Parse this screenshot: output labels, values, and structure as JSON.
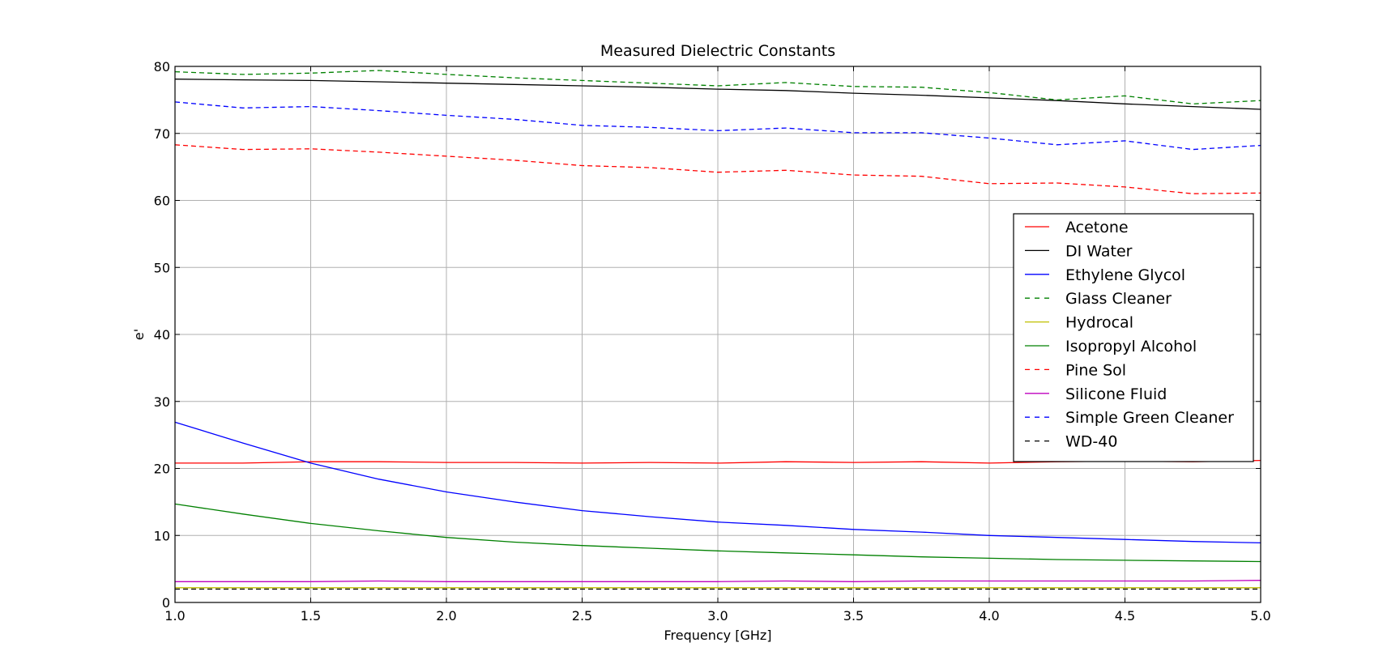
{
  "chart_data": {
    "type": "line",
    "title": "Measured Dielectric Constants",
    "xlabel": "Frequency [GHz]",
    "ylabel": "e'",
    "xlim": [
      1.0,
      5.0
    ],
    "ylim": [
      0,
      80
    ],
    "xticks": [
      "1.0",
      "1.5",
      "2.0",
      "2.5",
      "3.0",
      "3.5",
      "4.0",
      "4.5",
      "5.0"
    ],
    "yticks": [
      "0",
      "10",
      "20",
      "30",
      "40",
      "50",
      "60",
      "70",
      "80"
    ],
    "grid": true,
    "legend_position": "center-right",
    "x": [
      1.0,
      1.25,
      1.5,
      1.75,
      2.0,
      2.25,
      2.5,
      2.75,
      3.0,
      3.25,
      3.5,
      3.75,
      4.0,
      4.25,
      4.5,
      4.75,
      5.0
    ],
    "series": [
      {
        "name": "Acetone",
        "color": "#ff0000",
        "dash": "solid",
        "values": [
          20.8,
          20.8,
          21.0,
          21.0,
          20.9,
          20.9,
          20.8,
          20.9,
          20.8,
          21.0,
          20.9,
          21.0,
          20.8,
          21.0,
          21.1,
          21.0,
          21.2
        ]
      },
      {
        "name": "DI Water",
        "color": "#000000",
        "dash": "solid",
        "values": [
          78.1,
          78.0,
          77.9,
          77.7,
          77.5,
          77.3,
          77.1,
          76.9,
          76.6,
          76.4,
          76.0,
          75.7,
          75.3,
          74.9,
          74.4,
          74.0,
          73.6
        ]
      },
      {
        "name": "Ethylene Glycol",
        "color": "#0000ff",
        "dash": "solid",
        "values": [
          26.9,
          23.8,
          20.8,
          18.4,
          16.5,
          15.0,
          13.7,
          12.8,
          12.0,
          11.5,
          10.9,
          10.5,
          10.0,
          9.7,
          9.4,
          9.1,
          8.9
        ]
      },
      {
        "name": "Glass Cleaner",
        "color": "#008000",
        "dash": "dashed",
        "values": [
          79.2,
          78.8,
          79.0,
          79.4,
          78.8,
          78.3,
          77.9,
          77.5,
          77.1,
          77.6,
          77.0,
          76.9,
          76.1,
          75.0,
          75.6,
          74.4,
          74.9
        ]
      },
      {
        "name": "Hydrocal",
        "color": "#bfbf00",
        "dash": "solid",
        "values": [
          2.2,
          2.2,
          2.2,
          2.2,
          2.2,
          2.2,
          2.2,
          2.2,
          2.2,
          2.2,
          2.2,
          2.2,
          2.2,
          2.2,
          2.2,
          2.2,
          2.2
        ]
      },
      {
        "name": "Isopropyl Alcohol",
        "color": "#008000",
        "dash": "solid",
        "values": [
          14.7,
          13.2,
          11.8,
          10.7,
          9.7,
          9.0,
          8.5,
          8.1,
          7.7,
          7.4,
          7.1,
          6.8,
          6.6,
          6.4,
          6.3,
          6.2,
          6.1
        ]
      },
      {
        "name": "Pine Sol",
        "color": "#ff0000",
        "dash": "dashed",
        "values": [
          68.3,
          67.6,
          67.7,
          67.2,
          66.6,
          66.0,
          65.2,
          64.9,
          64.2,
          64.5,
          63.8,
          63.6,
          62.5,
          62.6,
          62.0,
          61.0,
          61.1
        ]
      },
      {
        "name": "Silicone Fluid",
        "color": "#bf00bf",
        "dash": "solid",
        "values": [
          3.1,
          3.1,
          3.1,
          3.2,
          3.1,
          3.1,
          3.1,
          3.1,
          3.1,
          3.2,
          3.1,
          3.2,
          3.2,
          3.2,
          3.2,
          3.2,
          3.3
        ]
      },
      {
        "name": "Simple Green Cleaner",
        "color": "#0000ff",
        "dash": "dashed",
        "values": [
          74.7,
          73.8,
          74.0,
          73.4,
          72.7,
          72.1,
          71.2,
          70.9,
          70.4,
          70.8,
          70.1,
          70.1,
          69.3,
          68.3,
          68.9,
          67.6,
          68.2
        ]
      },
      {
        "name": "WD-40",
        "color": "#000000",
        "dash": "dashed",
        "values": [
          2.0,
          2.0,
          2.0,
          2.0,
          2.0,
          2.0,
          2.0,
          2.0,
          2.0,
          2.0,
          2.0,
          2.0,
          2.0,
          2.0,
          2.0,
          2.0,
          2.0
        ]
      }
    ]
  }
}
